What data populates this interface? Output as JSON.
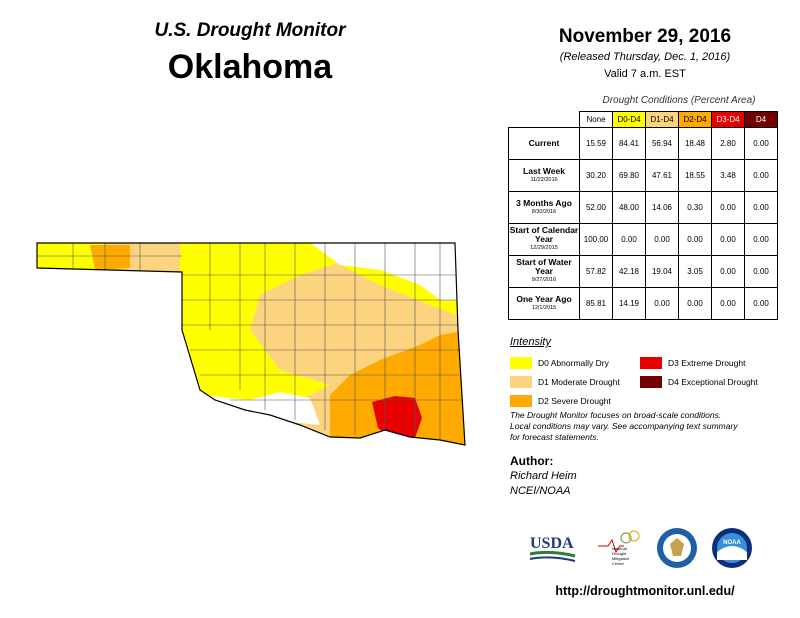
{
  "header": {
    "title": "U.S. Drought Monitor",
    "state": "Oklahoma",
    "date": "November 29, 2016",
    "released": "(Released Thursday, Dec. 1, 2016)",
    "valid": "Valid 7 a.m. EST"
  },
  "table": {
    "caption": "Drought Conditions (Percent Area)",
    "columns": [
      {
        "label": "None",
        "color": "#ffffff",
        "text_color": "#000000"
      },
      {
        "label": "D0-D4",
        "color": "#ffff00",
        "text_color": "#000000"
      },
      {
        "label": "D1-D4",
        "color": "#fcd37f",
        "text_color": "#000000"
      },
      {
        "label": "D2-D4",
        "color": "#ffaa00",
        "text_color": "#000000"
      },
      {
        "label": "D3-D4",
        "color": "#e60000",
        "text_color": "#ffffff"
      },
      {
        "label": "D4",
        "color": "#730000",
        "text_color": "#ffffff"
      }
    ],
    "rows": [
      {
        "label": "Current",
        "values": [
          "15.59",
          "84.41",
          "56.94",
          "18.48",
          "2.80",
          "0.00"
        ]
      },
      {
        "label": "Last Week",
        "date": "11/22/2016",
        "values": [
          "30.20",
          "69.80",
          "47.61",
          "18.55",
          "3.48",
          "0.00"
        ]
      },
      {
        "label": "3 Months Ago",
        "date": "8/30/2016",
        "values": [
          "52.00",
          "48.00",
          "14.06",
          "0.30",
          "0.00",
          "0.00"
        ]
      },
      {
        "label": "Start of Calendar Year",
        "date": "12/29/2015",
        "values": [
          "100.00",
          "0.00",
          "0.00",
          "0.00",
          "0.00",
          "0.00"
        ]
      },
      {
        "label": "Start of Water Year",
        "date": "9/27/2016",
        "values": [
          "57.82",
          "42.18",
          "19.04",
          "3.05",
          "0.00",
          "0.00"
        ]
      },
      {
        "label": "One Year Ago",
        "date": "12/1/2015",
        "values": [
          "85.81",
          "14.19",
          "0.00",
          "0.00",
          "0.00",
          "0.00"
        ]
      }
    ]
  },
  "legend": {
    "title": "Intensity",
    "items": [
      {
        "label": "D0 Abnormally Dry",
        "color": "#ffff00"
      },
      {
        "label": "D1 Moderate Drought",
        "color": "#fcd37f"
      },
      {
        "label": "D2 Severe Drought",
        "color": "#ffaa00"
      },
      {
        "label": "D3 Extreme Drought",
        "color": "#e60000"
      },
      {
        "label": "D4 Exceptional Drought",
        "color": "#730000"
      }
    ]
  },
  "note": [
    "The Drought Monitor focuses on broad-scale conditions.",
    "Local conditions may vary. See accompanying text summary",
    "for forecast statements."
  ],
  "author": {
    "heading": "Author:",
    "lines": [
      "Richard Heim",
      "NCEI/NOAA"
    ]
  },
  "logos": {
    "usda": "USDA",
    "ndmc": "National Drought Mitigation Center",
    "noaa": "NOAA"
  },
  "url": "http://droughtmonitor.unl.edu/"
}
